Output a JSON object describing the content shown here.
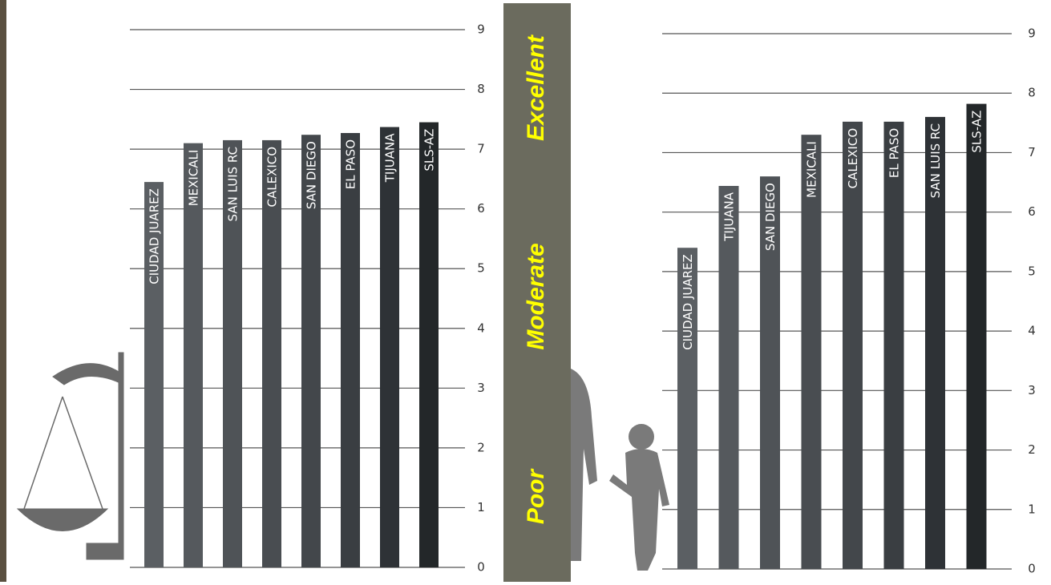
{
  "scale_labels": [
    "Excellent",
    "Moderate",
    "Poor"
  ],
  "chart_data": [
    {
      "type": "bar",
      "categories": [
        "CIUDAD JUAREZ",
        "MEXICALI",
        "SAN LUIS RC",
        "CALEXICO",
        "SAN DIEGO",
        "EL PASO",
        "TIJUANA",
        "SLS-AZ"
      ],
      "values": [
        6.45,
        7.1,
        7.15,
        7.15,
        7.24,
        7.27,
        7.37,
        7.45
      ],
      "colors": [
        "#5b5f63",
        "#55595d",
        "#4f5357",
        "#494d51",
        "#43474b",
        "#3a3e42",
        "#2e3236",
        "#232729"
      ],
      "ylim": [
        0,
        9
      ],
      "yticks": [
        0,
        1,
        2,
        3,
        4,
        5,
        6,
        7,
        8,
        9
      ],
      "grid": true,
      "y_axis_side": "right"
    },
    {
      "type": "bar",
      "categories": [
        "CIUDAD JUAREZ",
        "TIJUANA",
        "SAN DIEGO",
        "MEXICALI",
        "CALEXICO",
        "EL PASO",
        "SAN LUIS RC",
        "SLS-AZ"
      ],
      "values": [
        5.4,
        6.44,
        6.6,
        7.3,
        7.52,
        7.52,
        7.6,
        7.82
      ],
      "colors": [
        "#5b5f63",
        "#55595d",
        "#4f5357",
        "#494d51",
        "#43474b",
        "#3a3e42",
        "#2e3236",
        "#232729"
      ],
      "ylim": [
        0,
        9
      ],
      "yticks": [
        0,
        1,
        2,
        3,
        4,
        5,
        6,
        7,
        8,
        9
      ],
      "grid": true,
      "y_axis_side": "right"
    }
  ]
}
